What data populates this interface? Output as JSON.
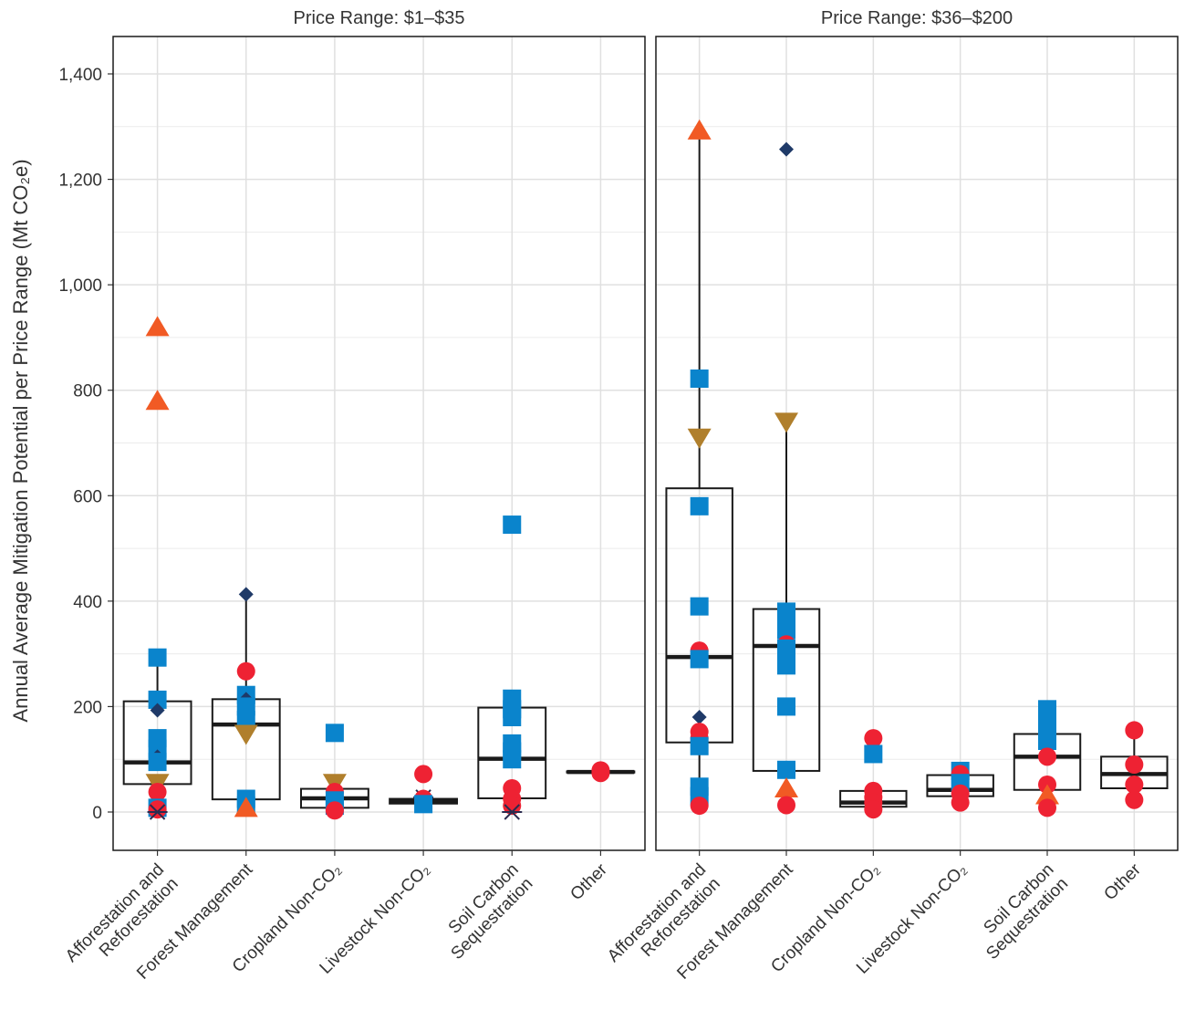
{
  "chart_data": {
    "type": "box",
    "ylabel": "Annual Average Mitigation Potential per Price Range (Mt CO₂e)",
    "ylim": [
      -75,
      1470
    ],
    "yticks": [
      0,
      200,
      400,
      600,
      800,
      1000,
      1200,
      1400
    ],
    "ytick_labels": [
      "0",
      "200",
      "400",
      "600",
      "800",
      "1,000",
      "1,200",
      "1,400"
    ],
    "grid": true,
    "categories": [
      "Afforestation and\nReforestation",
      "Forest Management",
      "Cropland Non-CO₂",
      "Livestock Non-CO₂",
      "Soil Carbon\nSequestration",
      "Other"
    ],
    "marker_colors": {
      "triangle-up": "#F15A24",
      "square": "#0A84CC",
      "diamond": "#1F3A68",
      "triangle-down": "#B07F2C",
      "circle": "#EE2233",
      "asterisk": "#2B2B4F"
    },
    "panels": [
      {
        "title": "Price Range: $1–$35",
        "boxes": [
          {
            "q1": 53,
            "median": 94,
            "q3": 210,
            "lo": 0,
            "hi": 290
          },
          {
            "q1": 24,
            "median": 166,
            "q3": 214,
            "lo": 8,
            "hi": 412
          },
          {
            "q1": 8,
            "median": 26,
            "q3": 44,
            "lo": 2,
            "hi": 60
          },
          {
            "q1": 16,
            "median": 20,
            "q3": 25,
            "lo": 12,
            "hi": 30
          },
          {
            "q1": 26,
            "median": 101,
            "q3": 198,
            "lo": 0,
            "hi": 230
          },
          {
            "q1": 75,
            "median": 76,
            "q3": 77,
            "lo": 75,
            "hi": 77
          }
        ],
        "points": [
          [
            {
              "shape": "triangle-up",
              "y": 920
            },
            {
              "shape": "triangle-up",
              "y": 780
            },
            {
              "shape": "square",
              "y": 293
            },
            {
              "shape": "square",
              "y": 213
            },
            {
              "shape": "diamond",
              "y": 193
            },
            {
              "shape": "square",
              "y": 140
            },
            {
              "shape": "square",
              "y": 120
            },
            {
              "shape": "diamond",
              "y": 105
            },
            {
              "shape": "square",
              "y": 95
            },
            {
              "shape": "triangle-down",
              "y": 55
            },
            {
              "shape": "circle",
              "y": 38
            },
            {
              "shape": "square",
              "y": 8
            },
            {
              "shape": "circle",
              "y": 5
            },
            {
              "shape": "asterisk",
              "y": 0
            }
          ],
          [
            {
              "shape": "diamond",
              "y": 413
            },
            {
              "shape": "circle",
              "y": 267
            },
            {
              "shape": "square",
              "y": 222
            },
            {
              "shape": "diamond",
              "y": 214
            },
            {
              "shape": "square",
              "y": 200
            },
            {
              "shape": "square",
              "y": 175
            },
            {
              "shape": "triangle-down",
              "y": 148
            },
            {
              "shape": "square",
              "y": 25
            },
            {
              "shape": "square",
              "y": 12
            },
            {
              "shape": "triangle-up",
              "y": 8
            }
          ],
          [
            {
              "shape": "square",
              "y": 150
            },
            {
              "shape": "triangle-down",
              "y": 55
            },
            {
              "shape": "circle",
              "y": 38
            },
            {
              "shape": "square",
              "y": 22
            },
            {
              "shape": "square",
              "y": 12
            },
            {
              "shape": "circle",
              "y": 3
            }
          ],
          [
            {
              "shape": "circle",
              "y": 72
            },
            {
              "shape": "asterisk",
              "y": 28
            },
            {
              "shape": "circle",
              "y": 25
            },
            {
              "shape": "square",
              "y": 15
            }
          ],
          [
            {
              "shape": "square",
              "y": 545
            },
            {
              "shape": "square",
              "y": 215
            },
            {
              "shape": "square",
              "y": 195
            },
            {
              "shape": "square",
              "y": 180
            },
            {
              "shape": "square",
              "y": 130
            },
            {
              "shape": "square",
              "y": 115
            },
            {
              "shape": "square",
              "y": 100
            },
            {
              "shape": "circle",
              "y": 45
            },
            {
              "shape": "circle",
              "y": 25
            },
            {
              "shape": "circle",
              "y": 12
            },
            {
              "shape": "asterisk",
              "y": 0
            }
          ],
          [
            {
              "shape": "circle",
              "y": 79
            },
            {
              "shape": "circle",
              "y": 74
            }
          ]
        ]
      },
      {
        "title": "Price Range: $36–$200",
        "boxes": [
          {
            "q1": 132,
            "median": 294,
            "q3": 614,
            "lo": 10,
            "hi": 1290
          },
          {
            "q1": 78,
            "median": 315,
            "q3": 385,
            "lo": 12,
            "hi": 740
          },
          {
            "q1": 10,
            "median": 18,
            "q3": 40,
            "lo": 3,
            "hi": 50
          },
          {
            "q1": 30,
            "median": 42,
            "q3": 70,
            "lo": 15,
            "hi": 75
          },
          {
            "q1": 42,
            "median": 105,
            "q3": 148,
            "lo": 8,
            "hi": 195
          },
          {
            "q1": 45,
            "median": 72,
            "q3": 105,
            "lo": 25,
            "hi": 155
          }
        ],
        "points": [
          [
            {
              "shape": "triangle-up",
              "y": 1293
            },
            {
              "shape": "square",
              "y": 822
            },
            {
              "shape": "triangle-down",
              "y": 710
            },
            {
              "shape": "square",
              "y": 580
            },
            {
              "shape": "square",
              "y": 390
            },
            {
              "shape": "circle",
              "y": 306
            },
            {
              "shape": "square",
              "y": 290
            },
            {
              "shape": "diamond",
              "y": 180
            },
            {
              "shape": "circle",
              "y": 152
            },
            {
              "shape": "circle",
              "y": 140
            },
            {
              "shape": "square",
              "y": 125
            },
            {
              "shape": "square",
              "y": 48
            },
            {
              "shape": "square",
              "y": 30
            },
            {
              "shape": "circle",
              "y": 12
            }
          ],
          [
            {
              "shape": "diamond",
              "y": 1257
            },
            {
              "shape": "triangle-down",
              "y": 740
            },
            {
              "shape": "square",
              "y": 380
            },
            {
              "shape": "square",
              "y": 365
            },
            {
              "shape": "square",
              "y": 345
            },
            {
              "shape": "circle",
              "y": 318
            },
            {
              "shape": "square",
              "y": 310
            },
            {
              "shape": "square",
              "y": 278
            },
            {
              "shape": "square",
              "y": 200
            },
            {
              "shape": "square",
              "y": 80
            },
            {
              "shape": "triangle-up",
              "y": 45
            },
            {
              "shape": "circle",
              "y": 13
            }
          ],
          [
            {
              "shape": "circle",
              "y": 140
            },
            {
              "shape": "square",
              "y": 110
            },
            {
              "shape": "circle",
              "y": 40
            },
            {
              "shape": "circle",
              "y": 28
            },
            {
              "shape": "circle",
              "y": 18
            },
            {
              "shape": "circle",
              "y": 5
            }
          ],
          [
            {
              "shape": "square",
              "y": 78
            },
            {
              "shape": "circle",
              "y": 72
            },
            {
              "shape": "square",
              "y": 55
            },
            {
              "shape": "circle",
              "y": 35
            },
            {
              "shape": "circle",
              "y": 18
            }
          ],
          [
            {
              "shape": "square",
              "y": 195
            },
            {
              "shape": "square",
              "y": 180
            },
            {
              "shape": "square",
              "y": 165
            },
            {
              "shape": "square",
              "y": 150
            },
            {
              "shape": "square",
              "y": 135
            },
            {
              "shape": "circle",
              "y": 105
            },
            {
              "shape": "circle",
              "y": 52
            },
            {
              "shape": "triangle-up",
              "y": 32
            },
            {
              "shape": "circle",
              "y": 8
            }
          ],
          [
            {
              "shape": "circle",
              "y": 155
            },
            {
              "shape": "circle",
              "y": 90
            },
            {
              "shape": "circle",
              "y": 52
            },
            {
              "shape": "circle",
              "y": 23
            }
          ]
        ]
      }
    ]
  }
}
